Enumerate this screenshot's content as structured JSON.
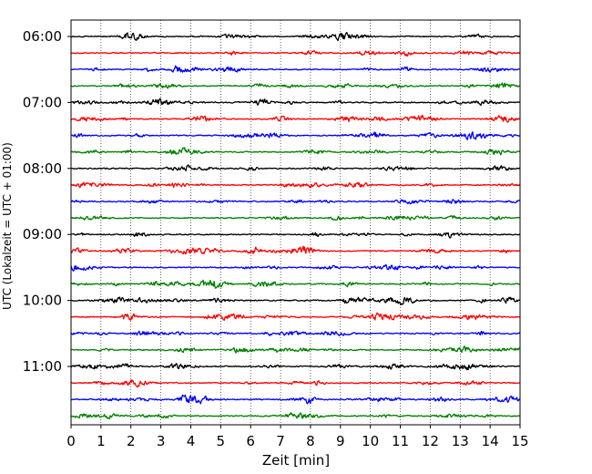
{
  "chart_data": {
    "type": "line",
    "title": "",
    "xlabel": "Zeit  [min]",
    "ylabel": "UTC (Lokalzeit = UTC + 01:00)",
    "xlim": [
      0,
      15
    ],
    "x_ticks": [
      "0",
      "1",
      "2",
      "3",
      "4",
      "5",
      "6",
      "7",
      "8",
      "9",
      "10",
      "11",
      "12",
      "13",
      "14",
      "15"
    ],
    "y_tick_labels": [
      "06:00",
      "07:00",
      "08:00",
      "09:00",
      "10:00",
      "11:00"
    ],
    "trace_start_times_utc": [
      "06:00",
      "06:15",
      "06:30",
      "06:45",
      "07:00",
      "07:15",
      "07:30",
      "07:45",
      "08:00",
      "08:15",
      "08:30",
      "08:45",
      "09:00",
      "09:15",
      "09:30",
      "09:45",
      "10:00",
      "10:15",
      "10:30",
      "10:45",
      "11:00",
      "11:15",
      "11:30",
      "11:45"
    ],
    "trace_colors_cycle": [
      "#000000",
      "#ff0000",
      "#0000ff",
      "#008000"
    ],
    "grid": "vertical dotted at each minute",
    "legend": "none"
  }
}
